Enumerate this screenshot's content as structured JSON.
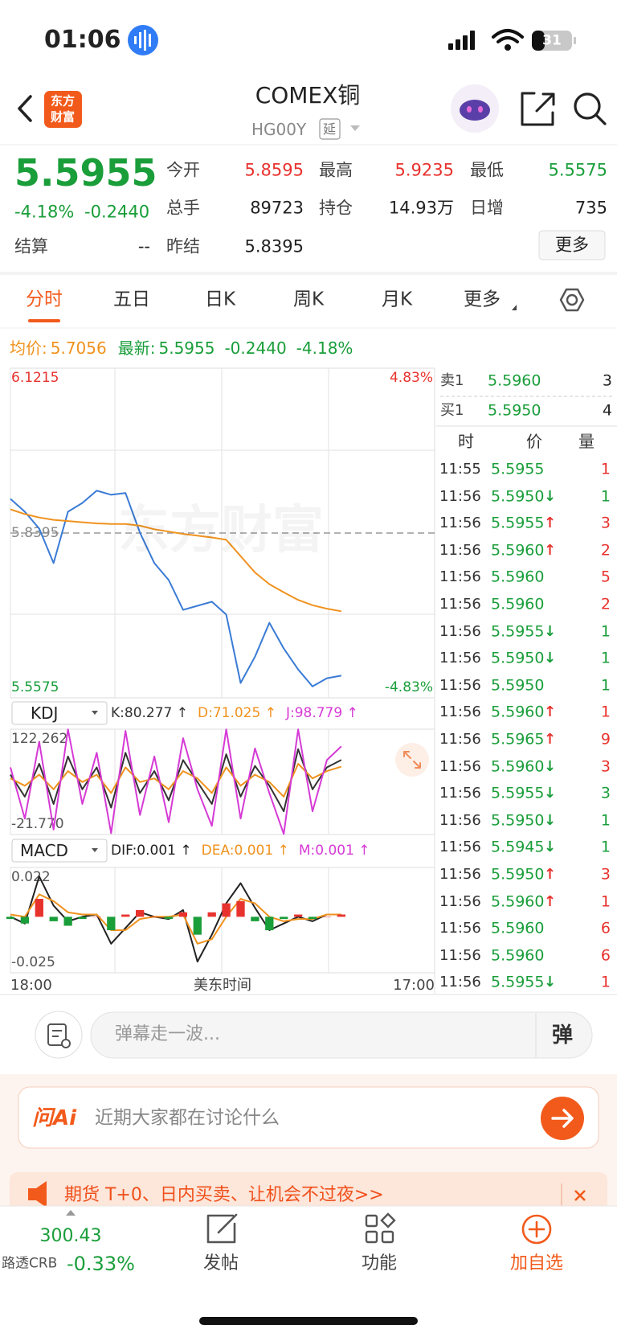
{
  "status": {
    "time": "01:06",
    "battery": "31"
  },
  "header": {
    "logo": [
      "东方",
      "财富"
    ],
    "title": "COMEX铜",
    "code": "HG00Y",
    "delay": "延"
  },
  "quote": {
    "price": "5.5955",
    "change_pct": "-4.18%",
    "change": "-0.2440",
    "stats": [
      [
        {
          "label": "今开",
          "value": "5.8595",
          "color": "#e8322d"
        },
        {
          "label": "最高",
          "value": "5.9235",
          "color": "#e8322d"
        },
        {
          "label": "最低",
          "value": "5.5575",
          "color": "#1a9e3a"
        }
      ],
      [
        {
          "label": "总手",
          "value": "89723",
          "color": "#222222"
        },
        {
          "label": "持仓",
          "value": "14.93万",
          "color": "#222222"
        },
        {
          "label": "日增",
          "value": "735",
          "color": "#222222"
        }
      ],
      [
        {
          "label": "结算",
          "value": "--",
          "color": "#222222"
        },
        {
          "label": "昨结",
          "value": "5.8395",
          "color": "#222222"
        }
      ]
    ],
    "more": "更多"
  },
  "tabs": {
    "items": [
      "分时",
      "五日",
      "日K",
      "周K",
      "月K",
      "更多"
    ],
    "active": 0
  },
  "summary": {
    "avg_label": "均价:",
    "avg": "5.7056",
    "latest_label": "最新:",
    "latest": "5.5955",
    "change": "-0.2440",
    "pct": "-4.18%"
  },
  "watermark": "东方财富",
  "chart_data": [
    {
      "type": "line",
      "ylim": [
        5.5575,
        6.1215
      ],
      "yticks": [
        6.1215,
        5.8395,
        5.5575
      ],
      "ytick_colors": [
        "#e8322d",
        "#888888",
        "#1a9e3a"
      ],
      "y2lim": [
        -4.83,
        4.83
      ],
      "y2ticks": [
        {
          "value": 4.83,
          "label": "4.83%"
        },
        {
          "value": -4.83,
          "label": "-4.83%"
        }
      ],
      "y2tick_colors": [
        "#e8322d",
        "#1a9e3a"
      ],
      "xticks": [
        "18:00",
        "17:00"
      ],
      "xlabel": "美东时间",
      "series": [
        {
          "color": "#3a7bd5",
          "values": [
            5.898,
            5.876,
            5.847,
            5.788,
            5.876,
            5.891,
            5.912,
            5.905,
            5.908,
            5.84,
            5.788,
            5.759,
            5.708,
            5.715,
            5.722,
            5.7,
            5.583,
            5.628,
            5.686,
            5.642,
            5.606,
            5.577,
            5.591,
            5.5955
          ]
        },
        {
          "color": "#f0921e",
          "values": [
            5.88,
            5.872,
            5.866,
            5.862,
            5.86,
            5.858,
            5.856,
            5.855,
            5.855,
            5.852,
            5.846,
            5.842,
            5.838,
            5.835,
            5.832,
            5.828,
            5.8,
            5.772,
            5.752,
            5.738,
            5.725,
            5.716,
            5.71,
            5.7056
          ]
        }
      ]
    },
    {
      "type": "line",
      "indicator": "KDJ",
      "ylim": [
        -21.77,
        122.262
      ],
      "yticks": [
        122.262,
        {
          "value": -21.77,
          "label": "-21.770"
        }
      ],
      "series": [
        {
          "label": "K:80.277 ↑",
          "color": "#333333",
          "values": [
            60,
            30,
            75,
            20,
            85,
            40,
            70,
            15,
            90,
            35,
            65,
            25,
            80,
            50,
            20,
            88,
            30,
            72,
            45,
            10,
            95,
            40,
            70,
            80.277
          ]
        },
        {
          "label": "D:71.025 ↑",
          "color": "#f0921e",
          "values": [
            55,
            45,
            60,
            40,
            65,
            50,
            60,
            35,
            70,
            50,
            55,
            40,
            65,
            55,
            35,
            70,
            45,
            60,
            50,
            30,
            75,
            55,
            65,
            71.025
          ]
        },
        {
          "label": "J:98.779 ↑",
          "color": "#d63ad6",
          "values": [
            70,
            0,
            105,
            -15,
            122,
            20,
            90,
            -20,
            120,
            5,
            85,
            -5,
            110,
            40,
            -10,
            122,
            0,
            96,
            35,
            -21,
            122,
            10,
            80,
            98.779
          ]
        }
      ]
    },
    {
      "type": "bar",
      "indicator": "MACD",
      "ylim": [
        -0.025,
        0.022
      ],
      "yticks": [
        0.022,
        -0.025
      ],
      "bar_colors": [
        "#e8322d",
        "#1a9e3a"
      ],
      "series": [
        {
          "label": "DIF:0.001 ↑",
          "color": "#222222",
          "kind": "line",
          "values": [
            0,
            -0.003,
            0.018,
            0.005,
            -0.002,
            0,
            0.001,
            -0.012,
            -0.005,
            0.002,
            0,
            -0.001,
            0.003,
            -0.02,
            -0.008,
            0.006,
            0.015,
            0.004,
            -0.006,
            -0.003,
            0,
            -0.002,
            0.001,
            0.001
          ]
        },
        {
          "label": "DEA:0.001 ↑",
          "color": "#f0921e",
          "kind": "line",
          "values": [
            0.001,
            0,
            0.01,
            0.007,
            0.002,
            0.001,
            0.001,
            -0.006,
            -0.006,
            -0.001,
            0,
            0,
            0.001,
            -0.012,
            -0.01,
            0,
            0.008,
            0.006,
            0,
            -0.002,
            -0.001,
            -0.001,
            0.001,
            0.001
          ]
        },
        {
          "label": "M:0.001 ↑",
          "color": "#d63ad6",
          "kind": "bar",
          "values": [
            -0.001,
            -0.003,
            0.008,
            -0.002,
            -0.004,
            -0.001,
            0,
            -0.006,
            0.001,
            0.003,
            0,
            -0.001,
            0.002,
            -0.008,
            0.002,
            0.006,
            0.007,
            -0.002,
            -0.006,
            -0.001,
            0.001,
            -0.001,
            0,
            0.001
          ]
        }
      ]
    }
  ],
  "order_book": {
    "colors": {
      "up": "#e8322d",
      "down": "#1a9e3a"
    },
    "sell": {
      "label": "卖1",
      "price": "5.5960",
      "qty": 3
    },
    "buy": {
      "label": "买1",
      "price": "5.5950",
      "qty": 4
    },
    "headers": [
      "时",
      "价",
      "量"
    ],
    "trades": [
      {
        "time": "11:55",
        "price": "5.5955",
        "volume": 1,
        "vol": "up"
      },
      {
        "time": "11:56",
        "price": "5.5950",
        "arrow": "↓",
        "dir": "down",
        "volume": 1,
        "vol": "down"
      },
      {
        "time": "11:56",
        "price": "5.5955",
        "arrow": "↑",
        "dir": "up",
        "volume": 3,
        "vol": "up"
      },
      {
        "time": "11:56",
        "price": "5.5960",
        "arrow": "↑",
        "dir": "up",
        "volume": 2,
        "vol": "up"
      },
      {
        "time": "11:56",
        "price": "5.5960",
        "volume": 5,
        "vol": "up"
      },
      {
        "time": "11:56",
        "price": "5.5960",
        "volume": 2,
        "vol": "up"
      },
      {
        "time": "11:56",
        "price": "5.5955",
        "arrow": "↓",
        "dir": "down",
        "volume": 1,
        "vol": "down"
      },
      {
        "time": "11:56",
        "price": "5.5950",
        "arrow": "↓",
        "dir": "down",
        "volume": 1,
        "vol": "down"
      },
      {
        "time": "11:56",
        "price": "5.5950",
        "volume": 1,
        "vol": "down"
      },
      {
        "time": "11:56",
        "price": "5.5960",
        "arrow": "↑",
        "dir": "up",
        "volume": 1,
        "vol": "up"
      },
      {
        "time": "11:56",
        "price": "5.5965",
        "arrow": "↑",
        "dir": "up",
        "volume": 9,
        "vol": "up"
      },
      {
        "time": "11:56",
        "price": "5.5960",
        "arrow": "↓",
        "dir": "down",
        "volume": 3,
        "vol": "up"
      },
      {
        "time": "11:56",
        "price": "5.5955",
        "arrow": "↓",
        "dir": "down",
        "volume": 3,
        "vol": "down"
      },
      {
        "time": "11:56",
        "price": "5.5950",
        "arrow": "↓",
        "dir": "down",
        "volume": 1,
        "vol": "down"
      },
      {
        "time": "11:56",
        "price": "5.5945",
        "arrow": "↓",
        "dir": "down",
        "volume": 1,
        "vol": "down"
      },
      {
        "time": "11:56",
        "price": "5.5950",
        "arrow": "↑",
        "dir": "up",
        "volume": 3,
        "vol": "up"
      },
      {
        "time": "11:56",
        "price": "5.5960",
        "arrow": "↑",
        "dir": "up",
        "volume": 1,
        "vol": "up"
      },
      {
        "time": "11:56",
        "price": "5.5960",
        "volume": 6,
        "vol": "up"
      },
      {
        "time": "11:56",
        "price": "5.5960",
        "volume": 6,
        "vol": "up"
      },
      {
        "time": "11:56",
        "price": "5.5955",
        "arrow": "↓",
        "dir": "down",
        "volume": 1,
        "vol": "up"
      }
    ]
  },
  "comment": {
    "placeholder": "弹幕走一波...",
    "button": "弹"
  },
  "ai": {
    "logo": "问Ai",
    "prompt": "近期大家都在讨论什么"
  },
  "banner": {
    "text": "期货 T+0、日内买卖、让机会不过夜>>"
  },
  "tabbar": {
    "index": {
      "value": "300.43",
      "name": "路透CRB",
      "change": "-0.33%"
    },
    "items": [
      "发帖",
      "功能",
      "加自选"
    ]
  }
}
